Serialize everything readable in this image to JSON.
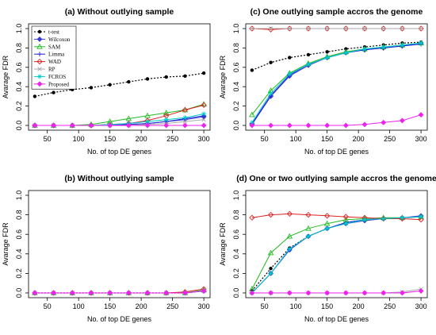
{
  "chart_data": [
    {
      "panel": "a",
      "type": "line",
      "title": "(a) Without outlying sample",
      "xlabel": "No. of top DE genes",
      "ylabel": "Avarage FDR",
      "x": [
        30,
        60,
        90,
        120,
        150,
        180,
        210,
        240,
        270,
        300
      ],
      "xticks": [
        50,
        100,
        150,
        200,
        250,
        300
      ],
      "yticks": [
        "0.0",
        "0.2",
        "0.4",
        "0.6",
        "0.8",
        "1.0"
      ],
      "xlim": [
        20,
        310
      ],
      "ylim": [
        0,
        1
      ],
      "legend_position": "top-left",
      "legend": [
        "t-test",
        "Wilcoxon",
        "SAM",
        "Limma",
        "WAD",
        "RP",
        "FCROS",
        "Proposed"
      ],
      "series": [
        {
          "name": "t-test",
          "color": "#000000",
          "values": [
            0.3,
            0.34,
            0.37,
            0.39,
            0.42,
            0.45,
            0.48,
            0.5,
            0.51,
            0.54
          ]
        },
        {
          "name": "Wilcoxon",
          "color": "#3a3ad8",
          "values": [
            0.0,
            0.0,
            0.0,
            0.0,
            0.0,
            0.01,
            0.02,
            0.04,
            0.06,
            0.09
          ]
        },
        {
          "name": "SAM",
          "color": "#22bb22",
          "values": [
            0.0,
            0.0,
            0.0,
            0.01,
            0.04,
            0.07,
            0.1,
            0.13,
            0.16,
            0.22
          ]
        },
        {
          "name": "Limma",
          "color": "#2222dd",
          "values": [
            0.0,
            0.0,
            0.0,
            0.0,
            0.0,
            0.01,
            0.02,
            0.04,
            0.07,
            0.1
          ]
        },
        {
          "name": "WAD",
          "color": "#dd2222",
          "values": [
            0.0,
            0.0,
            0.0,
            0.0,
            0.01,
            0.02,
            0.05,
            0.1,
            0.16,
            0.21
          ]
        },
        {
          "name": "RP",
          "color": "#aaaaaa",
          "values": [
            0.0,
            0.0,
            0.0,
            0.0,
            0.0,
            0.0,
            0.01,
            0.02,
            0.04,
            0.06
          ]
        },
        {
          "name": "FCROS",
          "color": "#00cccc",
          "values": [
            0.0,
            0.0,
            0.0,
            0.0,
            0.01,
            0.02,
            0.04,
            0.06,
            0.08,
            0.12
          ]
        },
        {
          "name": "Proposed",
          "color": "#ee22ee",
          "values": [
            0.0,
            0.0,
            0.0,
            0.0,
            0.0,
            0.0,
            0.0,
            0.0,
            0.0,
            0.0
          ]
        }
      ]
    },
    {
      "panel": "c",
      "type": "line",
      "title": "(c) One outlying sample accros the genome",
      "xlabel": "No. of top DE genes",
      "ylabel": "Avarage FDR",
      "x": [
        30,
        60,
        90,
        120,
        150,
        180,
        210,
        240,
        270,
        300
      ],
      "xticks": [
        50,
        100,
        150,
        200,
        250,
        300
      ],
      "yticks": [
        "0.0",
        "0.2",
        "0.4",
        "0.6",
        "0.8",
        "1.0"
      ],
      "xlim": [
        20,
        310
      ],
      "ylim": [
        0,
        1
      ],
      "series": [
        {
          "name": "t-test",
          "color": "#000000",
          "values": [
            0.57,
            0.65,
            0.7,
            0.73,
            0.76,
            0.79,
            0.81,
            0.83,
            0.85,
            0.86
          ]
        },
        {
          "name": "Wilcoxon",
          "color": "#3a3ad8",
          "values": [
            0.01,
            0.3,
            0.51,
            0.62,
            0.7,
            0.75,
            0.78,
            0.8,
            0.82,
            0.85
          ]
        },
        {
          "name": "SAM",
          "color": "#22bb22",
          "values": [
            0.11,
            0.36,
            0.54,
            0.64,
            0.71,
            0.76,
            0.79,
            0.81,
            0.83,
            0.85
          ]
        },
        {
          "name": "Limma",
          "color": "#2222dd",
          "values": [
            0.02,
            0.31,
            0.52,
            0.63,
            0.7,
            0.75,
            0.78,
            0.8,
            0.82,
            0.84
          ]
        },
        {
          "name": "WAD",
          "color": "#dd2222",
          "values": [
            1.0,
            0.99,
            1.0,
            1.0,
            1.0,
            1.0,
            1.0,
            1.0,
            1.0,
            1.0
          ]
        },
        {
          "name": "RP",
          "color": "#aaaaaa",
          "values": [
            1.0,
            1.0,
            1.0,
            1.0,
            1.0,
            1.0,
            1.0,
            1.0,
            1.0,
            1.0
          ]
        },
        {
          "name": "FCROS",
          "color": "#00cccc",
          "values": [
            0.03,
            0.33,
            0.53,
            0.63,
            0.7,
            0.75,
            0.79,
            0.81,
            0.83,
            0.85
          ]
        },
        {
          "name": "Proposed",
          "color": "#ee22ee",
          "values": [
            0.0,
            0.0,
            0.0,
            0.0,
            0.0,
            0.0,
            0.01,
            0.03,
            0.05,
            0.11
          ]
        }
      ]
    },
    {
      "panel": "b",
      "type": "line",
      "title": "(b) Without outlying sample",
      "xlabel": "No. of top DE genes",
      "ylabel": "Avarage FDR",
      "x": [
        30,
        60,
        90,
        120,
        150,
        180,
        210,
        240,
        270,
        300
      ],
      "xticks": [
        50,
        100,
        150,
        200,
        250,
        300
      ],
      "yticks": [
        "0.0",
        "0.2",
        "0.4",
        "0.6",
        "0.8",
        "1.0"
      ],
      "xlim": [
        20,
        310
      ],
      "ylim": [
        0,
        1
      ],
      "series": [
        {
          "name": "t-test",
          "color": "#000000",
          "values": [
            0.0,
            0.0,
            0.0,
            0.0,
            0.0,
            0.0,
            0.0,
            0.0,
            0.0,
            0.02
          ]
        },
        {
          "name": "Wilcoxon",
          "color": "#3a3ad8",
          "values": [
            0.0,
            0.0,
            0.0,
            0.0,
            0.0,
            0.0,
            0.0,
            0.0,
            0.0,
            0.02
          ]
        },
        {
          "name": "SAM",
          "color": "#22bb22",
          "values": [
            0.0,
            0.0,
            0.0,
            0.0,
            0.0,
            0.0,
            0.0,
            0.0,
            0.0,
            0.03
          ]
        },
        {
          "name": "Limma",
          "color": "#2222dd",
          "values": [
            0.0,
            0.0,
            0.0,
            0.0,
            0.0,
            0.0,
            0.0,
            0.0,
            0.0,
            0.02
          ]
        },
        {
          "name": "WAD",
          "color": "#dd2222",
          "values": [
            0.0,
            0.0,
            0.0,
            0.0,
            0.0,
            0.0,
            0.0,
            0.0,
            0.01,
            0.04
          ]
        },
        {
          "name": "RP",
          "color": "#aaaaaa",
          "values": [
            0.0,
            0.0,
            0.0,
            0.0,
            0.0,
            0.0,
            0.0,
            0.0,
            0.0,
            0.02
          ]
        },
        {
          "name": "FCROS",
          "color": "#00cccc",
          "values": [
            0.0,
            0.0,
            0.0,
            0.0,
            0.0,
            0.0,
            0.0,
            0.0,
            0.0,
            0.02
          ]
        },
        {
          "name": "Proposed",
          "color": "#ee22ee",
          "values": [
            0.0,
            0.0,
            0.0,
            0.0,
            0.0,
            0.0,
            0.0,
            0.0,
            0.0,
            0.02
          ]
        }
      ]
    },
    {
      "panel": "d",
      "type": "line",
      "title": "(d) One or two outlying sample accros the genome",
      "xlabel": "No. of top DE genes",
      "ylabel": "Avarage FDR",
      "x": [
        30,
        60,
        90,
        120,
        150,
        180,
        210,
        240,
        270,
        300
      ],
      "xticks": [
        50,
        100,
        150,
        200,
        250,
        300
      ],
      "yticks": [
        "0.0",
        "0.2",
        "0.4",
        "0.6",
        "0.8",
        "1.0"
      ],
      "xlim": [
        20,
        310
      ],
      "ylim": [
        0,
        1
      ],
      "series": [
        {
          "name": "t-test",
          "color": "#000000",
          "values": [
            0.02,
            0.25,
            0.46,
            0.58,
            0.66,
            0.72,
            0.75,
            0.76,
            0.77,
            0.78
          ]
        },
        {
          "name": "Wilcoxon",
          "color": "#3a3ad8",
          "values": [
            0.0,
            0.2,
            0.44,
            0.58,
            0.66,
            0.71,
            0.74,
            0.76,
            0.77,
            0.79
          ]
        },
        {
          "name": "SAM",
          "color": "#22bb22",
          "values": [
            0.04,
            0.41,
            0.58,
            0.66,
            0.71,
            0.75,
            0.76,
            0.77,
            0.77,
            0.78
          ]
        },
        {
          "name": "Limma",
          "color": "#2222dd",
          "values": [
            0.0,
            0.2,
            0.45,
            0.58,
            0.66,
            0.72,
            0.75,
            0.76,
            0.77,
            0.78
          ]
        },
        {
          "name": "WAD",
          "color": "#dd2222",
          "values": [
            0.77,
            0.8,
            0.81,
            0.8,
            0.79,
            0.78,
            0.77,
            0.76,
            0.76,
            0.75
          ]
        },
        {
          "name": "RP",
          "color": "#aaaaaa",
          "values": [
            0.0,
            0.0,
            0.0,
            0.0,
            0.0,
            0.0,
            0.0,
            0.0,
            0.01,
            0.04
          ]
        },
        {
          "name": "FCROS",
          "color": "#00cccc",
          "values": [
            0.0,
            0.2,
            0.45,
            0.58,
            0.66,
            0.71,
            0.75,
            0.76,
            0.77,
            0.78
          ]
        },
        {
          "name": "Proposed",
          "color": "#ee22ee",
          "values": [
            0.0,
            0.0,
            0.0,
            0.0,
            0.0,
            0.0,
            0.0,
            0.0,
            0.0,
            0.02
          ]
        }
      ]
    }
  ]
}
